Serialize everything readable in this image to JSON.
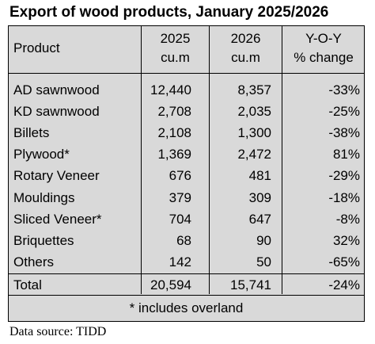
{
  "title": "Export of wood products, January 2025/2026",
  "table": {
    "headers": {
      "product": "Product",
      "y2025_line1": "2025",
      "y2025_line2": "cu.m",
      "y2026_line1": "2026",
      "y2026_line2": "cu.m",
      "yoy_line1": "Y-O-Y",
      "yoy_line2": "% change"
    },
    "rows": [
      {
        "product": "AD sawnwood",
        "y2025": "12,440",
        "y2026": "8,357",
        "change": "-33%"
      },
      {
        "product": "KD sawnwood",
        "y2025": "2,708",
        "y2026": "2,035",
        "change": "-25%"
      },
      {
        "product": "Billets",
        "y2025": "2,108",
        "y2026": "1,300",
        "change": "-38%"
      },
      {
        "product": "Plywood*",
        "y2025": "1,369",
        "y2026": "2,472",
        "change": "81%"
      },
      {
        "product": "Rotary Veneer",
        "y2025": "676",
        "y2026": "481",
        "change": "-29%"
      },
      {
        "product": "Mouldings",
        "y2025": "379",
        "y2026": "309",
        "change": "-18%"
      },
      {
        "product": "Sliced Veneer*",
        "y2025": "704",
        "y2026": "647",
        "change": "-8%"
      },
      {
        "product": "Briquettes",
        "y2025": "68",
        "y2026": "90",
        "change": "32%"
      },
      {
        "product": "Others",
        "y2025": "142",
        "y2026": "50",
        "change": "-65%"
      }
    ],
    "total": {
      "product": "Total",
      "y2025": "20,594",
      "y2026": "15,741",
      "change": "-24%"
    },
    "note": "* includes overland"
  },
  "source": "Data source: TIDD"
}
